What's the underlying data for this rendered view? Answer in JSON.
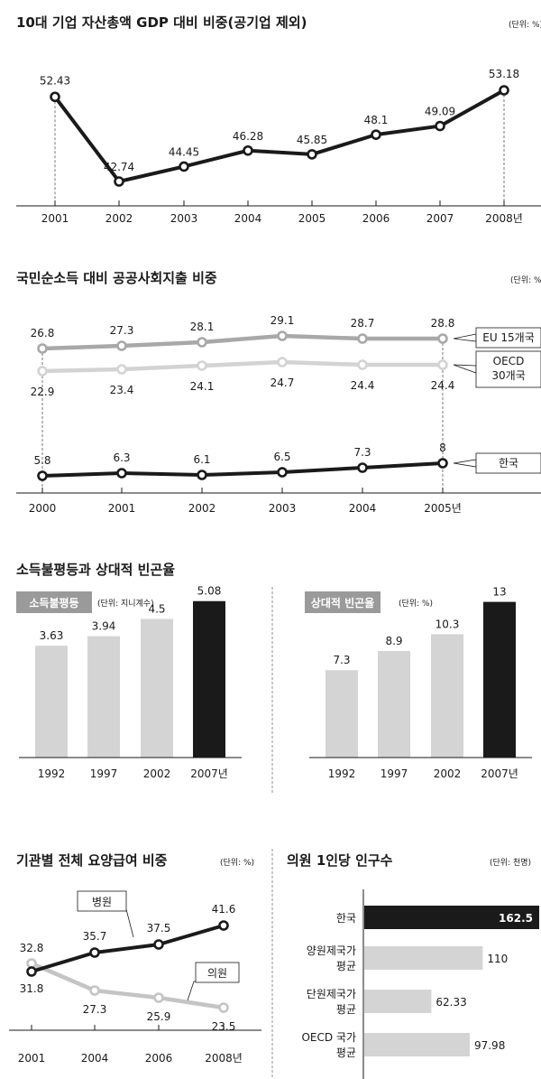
{
  "chart_data": [
    {
      "type": "line",
      "title": "10대 기업 자산총액 GDP 대비 비중(공기업 제외)",
      "unit": "(단위: %)",
      "x": [
        "2001",
        "2002",
        "2003",
        "2004",
        "2005",
        "2006",
        "2007",
        "2008년"
      ],
      "series": [
        {
          "values": [
            52.43,
            42.74,
            44.45,
            46.28,
            45.85,
            48.1,
            49.09,
            53.18
          ],
          "labels": [
            "52.43",
            "42.74",
            "44.45",
            "46.28",
            "45.85",
            "48.1",
            "49.09",
            "53.18"
          ]
        }
      ],
      "color": "#1a1a1a"
    },
    {
      "type": "line",
      "title": "국민순소득 대비 공공사회지출 비중",
      "unit": "(단위: %)",
      "x": [
        "2000",
        "2001",
        "2002",
        "2003",
        "2004",
        "2005년"
      ],
      "series": [
        {
          "name": "EU 15개국",
          "values": [
            26.8,
            27.3,
            28.1,
            29.1,
            28.7,
            28.8
          ],
          "labels": [
            "26.8",
            "27.3",
            "28.1",
            "29.1",
            "28.7",
            "28.8"
          ],
          "color": "#a8a8a8"
        },
        {
          "name": "OECD 30개국",
          "values": [
            22.9,
            23.4,
            24.1,
            24.7,
            24.4,
            24.4
          ],
          "labels": [
            "22.9",
            "23.4",
            "24.1",
            "24.7",
            "24.4",
            "24.4"
          ],
          "color": "#d3d3d3"
        },
        {
          "name": "한국",
          "values": [
            5.8,
            6.3,
            6.1,
            6.5,
            7.3,
            8
          ],
          "labels": [
            "5.8",
            "6.3",
            "6.1",
            "6.5",
            "7.3",
            "8"
          ],
          "color": "#1a1a1a"
        }
      ]
    },
    {
      "type": "bar",
      "group_title": "소득불평등과 상대적 빈곤율",
      "title": "소득불평등",
      "unit": "(단위: 지니계수)",
      "categories": [
        "1992",
        "1997",
        "2002",
        "2007년"
      ],
      "values": [
        3.63,
        3.94,
        4.5,
        5.08
      ],
      "labels": [
        "3.63",
        "3.94",
        "4.5",
        "5.08"
      ],
      "ylim": [
        0,
        5.6
      ]
    },
    {
      "type": "bar",
      "title": "상대적 빈곤율",
      "unit": "(단위: %)",
      "categories": [
        "1992",
        "1997",
        "2002",
        "2007년"
      ],
      "values": [
        7.3,
        8.9,
        10.3,
        13
      ],
      "labels": [
        "7.3",
        "8.9",
        "10.3",
        "13"
      ],
      "ylim": [
        0,
        14.4
      ]
    },
    {
      "type": "line",
      "title": "기관별 전체 요양급여 비중",
      "unit": "(단위: %)",
      "x": [
        "2001",
        "2004",
        "2006",
        "2008년"
      ],
      "series": [
        {
          "name": "병원",
          "values": [
            31.8,
            35.7,
            37.5,
            41.6
          ],
          "labels": [
            "31.8",
            "35.7",
            "37.5",
            "41.6"
          ],
          "color": "#1a1a1a"
        },
        {
          "name": "의원",
          "values": [
            32.8,
            27.3,
            25.9,
            23.5
          ],
          "labels": [
            "32.8",
            "27.3",
            "25.9",
            "23.5"
          ],
          "color": "#c4c4c4"
        }
      ]
    },
    {
      "type": "bar",
      "orientation": "horizontal",
      "title": "의원 1인당 인구수",
      "unit": "(단위: 천명)",
      "categories": [
        "한국",
        "양원제국가\n평균",
        "단원제국가\n평균",
        "OECD 국가\n평균"
      ],
      "values": [
        162.5,
        110,
        62.33,
        97.98
      ],
      "labels": [
        "162.5",
        "110",
        "62.33",
        "97.98"
      ]
    }
  ]
}
